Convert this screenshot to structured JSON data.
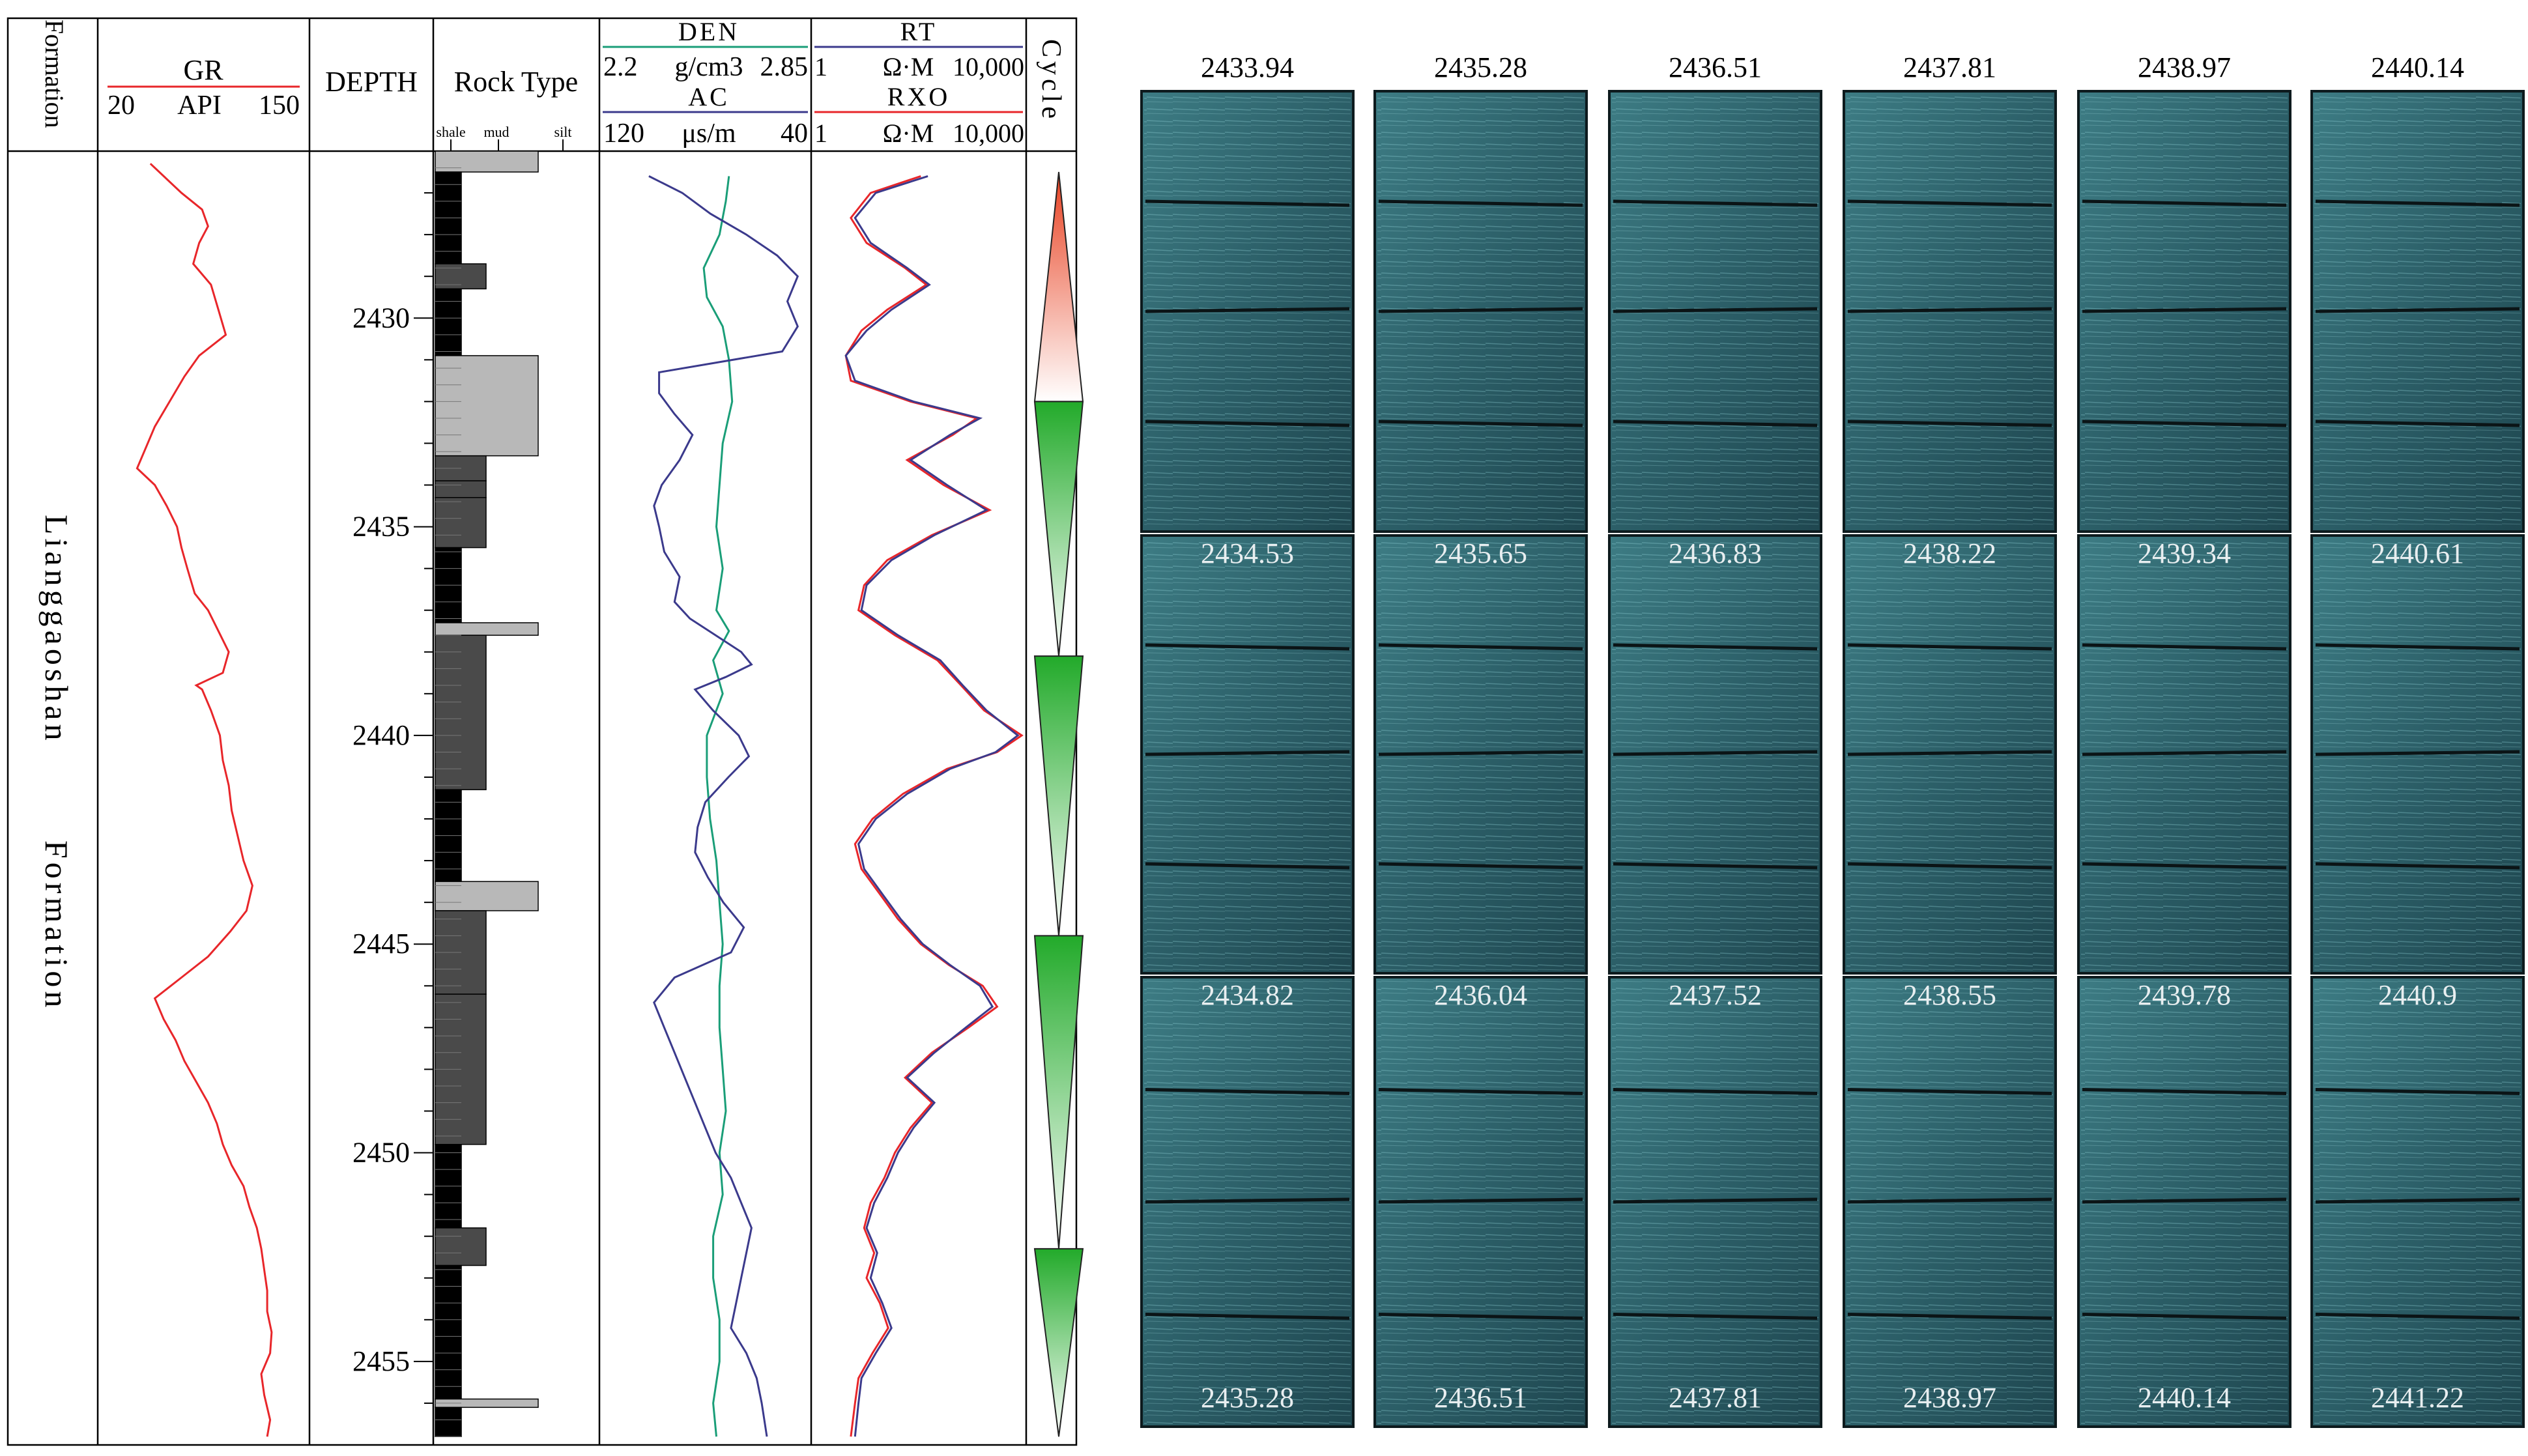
{
  "chart_data": {
    "type": "line",
    "title": "",
    "depth_axis": {
      "label": "DEPTH",
      "range": [
        2426,
        2457
      ],
      "ticks": [
        2430,
        2435,
        2440,
        2445,
        2450,
        2455
      ]
    },
    "formation": {
      "header": "Formation",
      "name_word1": "Lianggaoshan",
      "name_word2": "Formation"
    },
    "gr": {
      "name": "GR",
      "unit": "API",
      "min_label": "20",
      "max_label": "150",
      "range": [
        20,
        150
      ],
      "color": "#e8262a",
      "depth": [
        2426.3,
        2426.6,
        2427.0,
        2427.4,
        2427.8,
        2428.2,
        2428.7,
        2429.2,
        2429.8,
        2430.4,
        2430.9,
        2431.4,
        2432.0,
        2432.6,
        2433.1,
        2433.6,
        2434.0,
        2434.5,
        2435.0,
        2435.5,
        2436.0,
        2436.6,
        2437.0,
        2437.5,
        2438.0,
        2438.5,
        2438.8,
        2438.9,
        2439.4,
        2440.0,
        2440.6,
        2441.2,
        2441.8,
        2442.4,
        2443.0,
        2443.6,
        2444.2,
        2444.7,
        2445.3,
        2445.8,
        2446.3,
        2446.8,
        2447.3,
        2447.8,
        2448.3,
        2448.8,
        2449.3,
        2449.8,
        2450.3,
        2450.8,
        2451.3,
        2451.8,
        2452.3,
        2452.8,
        2453.3,
        2453.8,
        2454.3,
        2454.8,
        2455.3,
        2455.8,
        2456.4,
        2456.8
      ],
      "value": [
        49,
        58,
        70,
        84,
        88,
        82,
        78,
        90,
        95,
        100,
        82,
        72,
        62,
        52,
        46,
        40,
        52,
        60,
        67,
        70,
        74,
        79,
        88,
        95,
        102,
        98,
        80,
        84,
        90,
        96,
        98,
        102,
        104,
        108,
        112,
        118,
        114,
        103,
        88,
        70,
        52,
        58,
        66,
        72,
        80,
        88,
        94,
        98,
        104,
        112,
        116,
        121,
        124,
        126,
        128,
        128,
        131,
        130,
        124,
        126,
        130,
        128
      ]
    },
    "den": {
      "name": "DEN",
      "unit": "g/cm3",
      "min_label": "2.2",
      "max_label": "2.85",
      "range": [
        2.2,
        2.85
      ],
      "color": "#1a9e78",
      "depth": [
        2426.6,
        2427.2,
        2428.0,
        2428.8,
        2429.5,
        2430.2,
        2431.0,
        2432.0,
        2433.0,
        2434.0,
        2435.0,
        2436.0,
        2437.0,
        2437.5,
        2438.2,
        2439.0,
        2440.0,
        2441.0,
        2442.0,
        2443.0,
        2444.0,
        2445.0,
        2446.0,
        2447.0,
        2448.0,
        2449.0,
        2450.0,
        2451.0,
        2452.0,
        2453.0,
        2454.0,
        2455.0,
        2456.0,
        2456.8
      ],
      "value": [
        2.6,
        2.59,
        2.57,
        2.52,
        2.53,
        2.58,
        2.6,
        2.61,
        2.58,
        2.57,
        2.56,
        2.58,
        2.56,
        2.6,
        2.55,
        2.58,
        2.53,
        2.53,
        2.54,
        2.56,
        2.57,
        2.58,
        2.57,
        2.57,
        2.58,
        2.59,
        2.57,
        2.58,
        2.55,
        2.55,
        2.57,
        2.57,
        2.55,
        2.56
      ]
    },
    "ac": {
      "name": "AC",
      "unit": "μs/m",
      "min_label": "120",
      "max_label": "40",
      "range": [
        120,
        40
      ],
      "color": "#3b3a8c",
      "depth": [
        2426.6,
        2427.0,
        2427.5,
        2428.0,
        2428.5,
        2429.0,
        2429.6,
        2430.2,
        2430.8,
        2431.3,
        2431.8,
        2432.3,
        2432.8,
        2433.4,
        2434.0,
        2434.5,
        2435.0,
        2435.6,
        2436.2,
        2436.8,
        2437.2,
        2437.6,
        2438.0,
        2438.3,
        2438.6,
        2438.9,
        2439.4,
        2440.0,
        2440.5,
        2441.0,
        2441.6,
        2442.2,
        2442.8,
        2443.4,
        2444.0,
        2444.6,
        2445.2,
        2445.8,
        2446.4,
        2447.0,
        2447.6,
        2448.2,
        2448.8,
        2449.4,
        2450.0,
        2450.6,
        2451.2,
        2451.8,
        2452.4,
        2453.0,
        2453.6,
        2454.2,
        2454.8,
        2455.4,
        2456.0,
        2456.8
      ],
      "value": [
        102,
        89,
        78,
        64,
        52,
        44,
        48,
        44,
        50,
        98,
        98,
        92,
        85,
        90,
        97,
        100,
        98,
        96,
        90,
        92,
        86,
        76,
        66,
        62,
        72,
        84,
        77,
        67,
        63,
        71,
        80,
        83,
        84,
        79,
        73,
        65,
        70,
        92,
        100,
        96,
        92,
        88,
        84,
        80,
        76,
        70,
        66,
        62,
        64,
        66,
        68,
        70,
        64,
        60,
        58,
        56
      ]
    },
    "rt": {
      "name": "RT",
      "unit": "Ω·M",
      "min_label": "1",
      "max_label": "10,000",
      "range": [
        1,
        10000
      ],
      "scale": "log",
      "color": "#3b3a8c",
      "depth": [
        2426.6,
        2427.0,
        2427.6,
        2428.2,
        2428.8,
        2429.2,
        2429.8,
        2430.3,
        2430.9,
        2431.5,
        2432.0,
        2432.4,
        2432.8,
        2433.4,
        2434.0,
        2434.6,
        2435.2,
        2435.8,
        2436.4,
        2437.0,
        2437.6,
        2438.2,
        2438.8,
        2439.4,
        2440.0,
        2440.4,
        2440.8,
        2441.4,
        2442.0,
        2442.6,
        2443.2,
        2443.8,
        2444.4,
        2445.0,
        2445.5,
        2446.0,
        2446.5,
        2447.0,
        2447.6,
        2448.2,
        2448.8,
        2449.4,
        2450.0,
        2450.6,
        2451.2,
        2451.8,
        2452.4,
        2453.0,
        2453.6,
        2454.2,
        2454.8,
        2455.4,
        2456.0,
        2456.8
      ],
      "value": [
        150,
        15,
        6,
        12,
        60,
        160,
        30,
        10,
        4,
        6,
        80,
        1500,
        400,
        70,
        350,
        2000,
        200,
        30,
        10,
        8,
        40,
        260,
        700,
        2000,
        8000,
        3000,
        400,
        60,
        15,
        7,
        9,
        20,
        45,
        120,
        400,
        1500,
        2600,
        800,
        200,
        60,
        200,
        80,
        40,
        25,
        14,
        10,
        16,
        12,
        20,
        30,
        15,
        8,
        7,
        6
      ]
    },
    "rxo": {
      "name": "RXO",
      "unit": "Ω·M",
      "min_label": "1",
      "max_label": "10,000",
      "range": [
        1,
        10000
      ],
      "scale": "log",
      "color": "#e8262a",
      "depth": [
        2426.6,
        2427.0,
        2427.6,
        2428.2,
        2428.8,
        2429.2,
        2429.8,
        2430.3,
        2430.9,
        2431.5,
        2432.0,
        2432.4,
        2432.8,
        2433.4,
        2434.0,
        2434.6,
        2435.2,
        2435.8,
        2436.4,
        2437.0,
        2437.6,
        2438.2,
        2438.8,
        2439.4,
        2440.0,
        2440.4,
        2440.8,
        2441.4,
        2442.0,
        2442.6,
        2443.2,
        2443.8,
        2444.4,
        2445.0,
        2445.5,
        2446.0,
        2446.5,
        2447.0,
        2447.6,
        2448.2,
        2448.8,
        2449.4,
        2450.0,
        2450.6,
        2451.2,
        2451.8,
        2452.4,
        2453.0,
        2453.6,
        2454.2,
        2454.8,
        2455.4,
        2456.0,
        2456.8
      ],
      "value": [
        110,
        12,
        5,
        10,
        55,
        140,
        25,
        8,
        4,
        5,
        70,
        1300,
        450,
        60,
        300,
        2300,
        180,
        25,
        9,
        7,
        35,
        230,
        650,
        1800,
        9500,
        3200,
        350,
        50,
        13,
        6,
        8,
        18,
        40,
        110,
        380,
        1700,
        3200,
        900,
        180,
        55,
        180,
        70,
        35,
        22,
        12,
        9,
        14,
        10,
        18,
        26,
        13,
        7,
        6,
        5
      ]
    },
    "rock_type": {
      "header": "Rock Type",
      "sub_labels": [
        "shale",
        "mud",
        "silt"
      ],
      "beds": [
        {
          "top": 2426.0,
          "bottom": 2426.5,
          "lith": "silt"
        },
        {
          "top": 2426.5,
          "bottom": 2428.7,
          "lith": "shale"
        },
        {
          "top": 2428.7,
          "bottom": 2429.3,
          "lith": "mud"
        },
        {
          "top": 2429.3,
          "bottom": 2430.9,
          "lith": "shale"
        },
        {
          "top": 2430.9,
          "bottom": 2433.3,
          "lith": "silt"
        },
        {
          "top": 2433.3,
          "bottom": 2433.9,
          "lith": "mud"
        },
        {
          "top": 2433.9,
          "bottom": 2434.3,
          "lith": "mud"
        },
        {
          "top": 2434.3,
          "bottom": 2435.5,
          "lith": "mud"
        },
        {
          "top": 2435.5,
          "bottom": 2437.3,
          "lith": "shale"
        },
        {
          "top": 2437.3,
          "bottom": 2437.6,
          "lith": "silt"
        },
        {
          "top": 2437.6,
          "bottom": 2441.3,
          "lith": "mud"
        },
        {
          "top": 2441.3,
          "bottom": 2443.5,
          "lith": "shale"
        },
        {
          "top": 2443.5,
          "bottom": 2444.2,
          "lith": "silt"
        },
        {
          "top": 2444.2,
          "bottom": 2446.2,
          "lith": "mud"
        },
        {
          "top": 2446.2,
          "bottom": 2449.8,
          "lith": "mud"
        },
        {
          "top": 2449.8,
          "bottom": 2451.8,
          "lith": "shale"
        },
        {
          "top": 2451.8,
          "bottom": 2452.7,
          "lith": "mud"
        },
        {
          "top": 2452.7,
          "bottom": 2455.9,
          "lith": "shale"
        },
        {
          "top": 2455.9,
          "bottom": 2456.1,
          "lith": "silt"
        },
        {
          "top": 2456.1,
          "bottom": 2456.8,
          "lith": "shale"
        }
      ]
    },
    "cycle": {
      "header": "Cycle",
      "segments": [
        {
          "top": 2426.5,
          "bottom": 2432.0,
          "direction": "up",
          "color": "#e84020"
        },
        {
          "top": 2432.0,
          "bottom": 2438.1,
          "direction": "down",
          "color": "#22aa2a"
        },
        {
          "top": 2438.1,
          "bottom": 2444.8,
          "direction": "down",
          "color": "#22aa2a"
        },
        {
          "top": 2444.8,
          "bottom": 2452.3,
          "direction": "down",
          "color": "#22aa2a"
        },
        {
          "top": 2452.3,
          "bottom": 2456.8,
          "direction": "down",
          "color": "#22aa2a"
        }
      ]
    }
  },
  "core_photos": {
    "columns": [
      {
        "top_label": "2433.94",
        "boxes": [
          {
            "label": ""
          },
          {
            "label": "2434.53"
          },
          {
            "label": "2434.82"
          }
        ],
        "bottom_label": "2435.28"
      },
      {
        "top_label": "2435.28",
        "boxes": [
          {
            "label": ""
          },
          {
            "label": "2435.65"
          },
          {
            "label": "2436.04"
          }
        ],
        "bottom_label": "2436.51"
      },
      {
        "top_label": "2436.51",
        "boxes": [
          {
            "label": ""
          },
          {
            "label": "2436.83"
          },
          {
            "label": "2437.52"
          }
        ],
        "bottom_label": "2437.81"
      },
      {
        "top_label": "2437.81",
        "boxes": [
          {
            "label": ""
          },
          {
            "label": "2438.22"
          },
          {
            "label": "2438.55"
          }
        ],
        "bottom_label": "2438.97"
      },
      {
        "top_label": "2438.97",
        "boxes": [
          {
            "label": ""
          },
          {
            "label": "2439.34"
          },
          {
            "label": "2439.78"
          }
        ],
        "bottom_label": "2440.14"
      },
      {
        "top_label": "2440.14",
        "boxes": [
          {
            "label": ""
          },
          {
            "label": "2440.61"
          },
          {
            "label": "2440.9"
          }
        ],
        "bottom_label": "2441.22"
      }
    ]
  }
}
